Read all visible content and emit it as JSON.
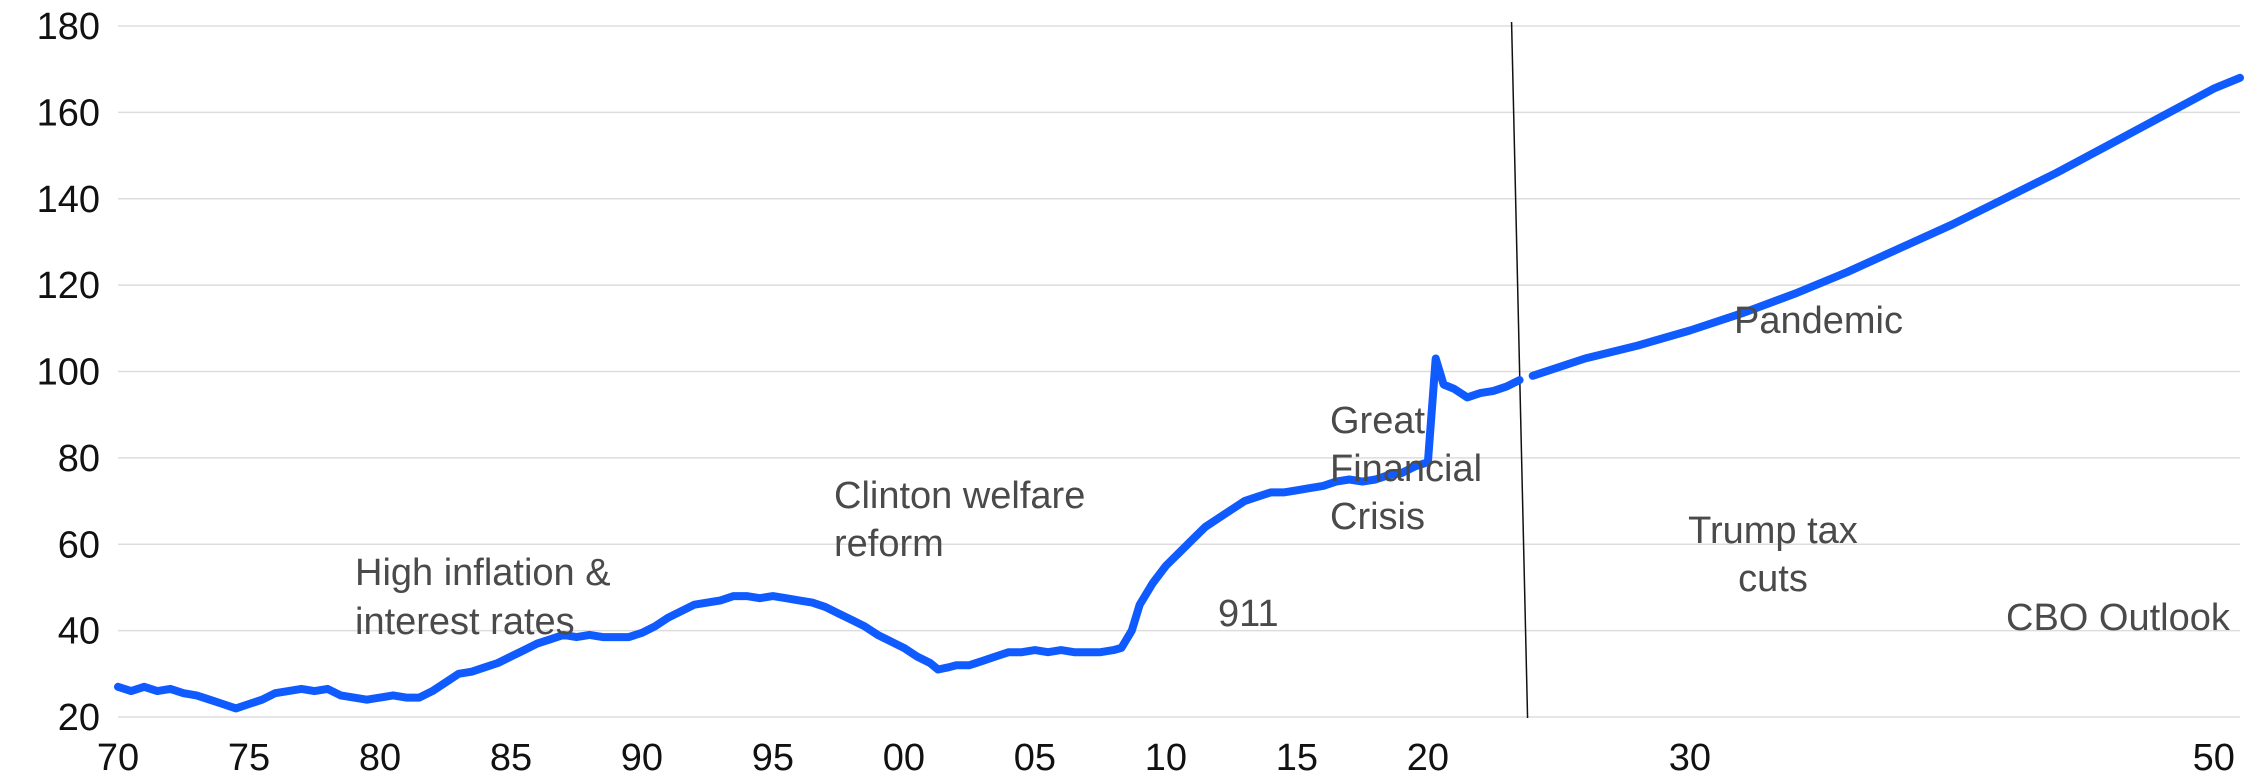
{
  "chart_data": {
    "type": "line",
    "title": "",
    "xlabel": "",
    "ylabel": "",
    "xlim": [
      1970,
      2051
    ],
    "ylim": [
      20,
      180
    ],
    "grid": true,
    "legend": "none",
    "color": "#0f5bff",
    "y_ticks": [
      "20",
      "40",
      "60",
      "80",
      "100",
      "120",
      "140",
      "160",
      "180"
    ],
    "x_ticks": [
      {
        "year": 1970,
        "label": "70"
      },
      {
        "year": 1975,
        "label": "75"
      },
      {
        "year": 1980,
        "label": "80"
      },
      {
        "year": 1985,
        "label": "85"
      },
      {
        "year": 1990,
        "label": "90"
      },
      {
        "year": 1995,
        "label": "95"
      },
      {
        "year": 2000,
        "label": "00"
      },
      {
        "year": 2005,
        "label": "05"
      },
      {
        "year": 2010,
        "label": "10"
      },
      {
        "year": 2015,
        "label": "15"
      },
      {
        "year": 2020,
        "label": "20"
      },
      {
        "year": 2030,
        "label": "30"
      },
      {
        "year": 2050,
        "label": "50"
      }
    ],
    "divider_year": 2023.5,
    "series": [
      {
        "x": [
          1970,
          1970.5,
          1971,
          1971.5,
          1972,
          1972.5,
          1973,
          1973.5,
          1974,
          1974.5,
          1975,
          1975.5,
          1976,
          1976.5,
          1977,
          1977.5,
          1978,
          1978.5,
          1979,
          1979.5,
          1980,
          1980.5,
          1981,
          1981.5,
          1982,
          1982.5,
          1983,
          1983.5,
          1984,
          1984.5,
          1985,
          1985.5,
          1986,
          1986.5,
          1987,
          1987.5,
          1988,
          1988.5,
          1989,
          1989.5,
          1990,
          1990.5,
          1991,
          1991.5,
          1992,
          1992.5,
          1993,
          1993.5,
          1994,
          1994.5,
          1995,
          1995.5,
          1996,
          1996.5,
          1997,
          1997.5,
          1998,
          1998.5,
          1999,
          1999.5,
          2000,
          2000.5,
          2001,
          2001.3,
          2001.7,
          2002,
          2002.5,
          2003,
          2003.5,
          2004,
          2004.5,
          2005,
          2005.5,
          2006,
          2006.5,
          2007,
          2007.5,
          2008,
          2008.3,
          2008.7,
          2009,
          2009.5,
          2010,
          2010.5,
          2011,
          2011.5,
          2012,
          2012.5,
          2013,
          2013.5,
          2014,
          2014.5,
          2015,
          2015.5,
          2016,
          2016.5,
          2017,
          2017.5,
          2018,
          2018.5,
          2019,
          2019.5,
          2020,
          2020.3,
          2020.6,
          2021,
          2021.5,
          2022,
          2022.5,
          2023,
          2023.5
        ],
        "y": [
          27,
          26,
          27,
          26,
          26.5,
          25.5,
          25,
          24,
          23,
          22,
          23,
          24,
          25.5,
          26,
          26.5,
          26,
          26.5,
          25,
          24.5,
          24,
          24.5,
          25,
          24.5,
          24.5,
          26,
          28,
          30,
          30.5,
          31.5,
          32.5,
          34,
          35.5,
          37,
          38,
          39,
          38.5,
          39,
          38.5,
          38.5,
          38.5,
          39.5,
          41,
          43,
          44.5,
          46,
          46.5,
          47,
          48,
          48,
          47.5,
          48,
          47.5,
          47,
          46.5,
          45.5,
          44,
          42.5,
          41,
          39,
          37.5,
          36,
          34,
          32.5,
          31,
          31.5,
          32,
          32,
          33,
          34,
          35,
          35,
          35.5,
          35,
          35.5,
          35,
          35,
          35,
          35.5,
          36,
          40,
          46,
          51,
          55,
          58,
          61,
          64,
          66,
          68,
          70,
          71,
          72,
          72,
          72.5,
          73,
          73.5,
          74.5,
          75,
          74.5,
          75,
          76,
          76.5,
          78,
          79,
          103,
          97,
          96,
          94,
          95,
          95.5,
          96.5,
          98
        ]
      },
      {
        "x": [
          2024,
          2026,
          2028,
          2030,
          2032,
          2034,
          2036,
          2038,
          2040,
          2042,
          2044,
          2046,
          2048,
          2050,
          2051
        ],
        "y": [
          99,
          103,
          106,
          109.5,
          113.5,
          118,
          123,
          128.5,
          134,
          140,
          146,
          152.5,
          159,
          165.5,
          168
        ]
      }
    ],
    "annotations": [
      {
        "id": "high-inflation",
        "lines": [
          "High inflation &",
          "interest rates"
        ]
      },
      {
        "id": "clinton",
        "lines": [
          "Clinton welfare",
          "reform"
        ]
      },
      {
        "id": "911",
        "lines": [
          "911"
        ]
      },
      {
        "id": "gfc",
        "lines": [
          "Great",
          "Financial",
          "Crisis"
        ]
      },
      {
        "id": "trump",
        "lines": [
          "Trump tax",
          "cuts"
        ]
      },
      {
        "id": "pandemic",
        "lines": [
          "Pandemic"
        ]
      },
      {
        "id": "cbo",
        "lines": [
          "CBO Outlook"
        ]
      }
    ]
  }
}
